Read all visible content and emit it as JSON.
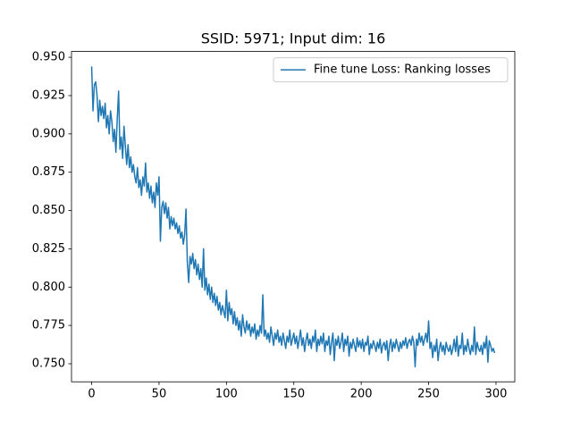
{
  "chart_data": {
    "type": "line",
    "title": "SSID: 5971; Input dim: 16",
    "x": [
      0,
      1,
      2,
      3,
      4,
      5,
      6,
      7,
      8,
      9,
      10,
      11,
      12,
      13,
      14,
      15,
      16,
      17,
      18,
      19,
      20,
      21,
      22,
      23,
      24,
      25,
      26,
      27,
      28,
      29,
      30,
      31,
      32,
      33,
      34,
      35,
      36,
      37,
      38,
      39,
      40,
      41,
      42,
      43,
      44,
      45,
      46,
      47,
      48,
      49,
      50,
      51,
      52,
      53,
      54,
      55,
      56,
      57,
      58,
      59,
      60,
      61,
      62,
      63,
      64,
      65,
      66,
      67,
      68,
      69,
      70,
      71,
      72,
      73,
      74,
      75,
      76,
      77,
      78,
      79,
      80,
      81,
      82,
      83,
      84,
      85,
      86,
      87,
      88,
      89,
      90,
      91,
      92,
      93,
      94,
      95,
      96,
      97,
      98,
      99,
      100,
      101,
      102,
      103,
      104,
      105,
      106,
      107,
      108,
      109,
      110,
      111,
      112,
      113,
      114,
      115,
      116,
      117,
      118,
      119,
      120,
      121,
      122,
      123,
      124,
      125,
      126,
      127,
      128,
      129,
      130,
      131,
      132,
      133,
      134,
      135,
      136,
      137,
      138,
      139,
      140,
      141,
      142,
      143,
      144,
      145,
      146,
      147,
      148,
      149,
      150,
      151,
      152,
      153,
      154,
      155,
      156,
      157,
      158,
      159,
      160,
      161,
      162,
      163,
      164,
      165,
      166,
      167,
      168,
      169,
      170,
      171,
      172,
      173,
      174,
      175,
      176,
      177,
      178,
      179,
      180,
      181,
      182,
      183,
      184,
      185,
      186,
      187,
      188,
      189,
      190,
      191,
      192,
      193,
      194,
      195,
      196,
      197,
      198,
      199,
      200,
      201,
      202,
      203,
      204,
      205,
      206,
      207,
      208,
      209,
      210,
      211,
      212,
      213,
      214,
      215,
      216,
      217,
      218,
      219,
      220,
      221,
      222,
      223,
      224,
      225,
      226,
      227,
      228,
      229,
      230,
      231,
      232,
      233,
      234,
      235,
      236,
      237,
      238,
      239,
      240,
      241,
      242,
      243,
      244,
      245,
      246,
      247,
      248,
      249,
      250,
      251,
      252,
      253,
      254,
      255,
      256,
      257,
      258,
      259,
      260,
      261,
      262,
      263,
      264,
      265,
      266,
      267,
      268,
      269,
      270,
      271,
      272,
      273,
      274,
      275,
      276,
      277,
      278,
      279,
      280,
      281,
      282,
      283,
      284,
      285,
      286,
      287,
      288,
      289,
      290,
      291,
      292,
      293,
      294,
      295,
      296,
      297,
      298,
      299
    ],
    "series": [
      {
        "name": "Fine tune Loss: Ranking losses",
        "color": "#1f77b4",
        "values": [
          0.944,
          0.915,
          0.932,
          0.934,
          0.925,
          0.908,
          0.922,
          0.912,
          0.918,
          0.91,
          0.92,
          0.904,
          0.912,
          0.9,
          0.915,
          0.908,
          0.895,
          0.903,
          0.888,
          0.91,
          0.928,
          0.89,
          0.898,
          0.884,
          0.905,
          0.892,
          0.88,
          0.893,
          0.878,
          0.885,
          0.875,
          0.88,
          0.872,
          0.868,
          0.878,
          0.865,
          0.87,
          0.86,
          0.872,
          0.866,
          0.881,
          0.862,
          0.868,
          0.858,
          0.866,
          0.855,
          0.862,
          0.852,
          0.868,
          0.86,
          0.872,
          0.83,
          0.852,
          0.856,
          0.848,
          0.855,
          0.845,
          0.852,
          0.838,
          0.846,
          0.84,
          0.845,
          0.838,
          0.842,
          0.835,
          0.84,
          0.832,
          0.836,
          0.828,
          0.834,
          0.851,
          0.816,
          0.803,
          0.82,
          0.815,
          0.822,
          0.812,
          0.818,
          0.808,
          0.815,
          0.805,
          0.812,
          0.8,
          0.825,
          0.798,
          0.806,
          0.795,
          0.802,
          0.792,
          0.8,
          0.79,
          0.796,
          0.788,
          0.794,
          0.785,
          0.79,
          0.782,
          0.788,
          0.784,
          0.78,
          0.798,
          0.778,
          0.79,
          0.782,
          0.786,
          0.776,
          0.784,
          0.775,
          0.78,
          0.772,
          0.778,
          0.768,
          0.782,
          0.774,
          0.77,
          0.778,
          0.772,
          0.776,
          0.768,
          0.774,
          0.77,
          0.776,
          0.766,
          0.772,
          0.768,
          0.775,
          0.77,
          0.795,
          0.768,
          0.772,
          0.766,
          0.77,
          0.764,
          0.774,
          0.768,
          0.762,
          0.77,
          0.766,
          0.772,
          0.764,
          0.768,
          0.762,
          0.77,
          0.765,
          0.76,
          0.768,
          0.764,
          0.772,
          0.762,
          0.766,
          0.77,
          0.763,
          0.768,
          0.76,
          0.766,
          0.772,
          0.762,
          0.767,
          0.758,
          0.765,
          0.77,
          0.762,
          0.766,
          0.76,
          0.768,
          0.764,
          0.772,
          0.758,
          0.766,
          0.762,
          0.768,
          0.763,
          0.77,
          0.758,
          0.765,
          0.762,
          0.768,
          0.756,
          0.764,
          0.77,
          0.752,
          0.766,
          0.762,
          0.768,
          0.76,
          0.764,
          0.77,
          0.758,
          0.766,
          0.762,
          0.768,
          0.755,
          0.764,
          0.76,
          0.766,
          0.762,
          0.758,
          0.767,
          0.761,
          0.765,
          0.76,
          0.766,
          0.758,
          0.764,
          0.762,
          0.768,
          0.756,
          0.763,
          0.76,
          0.765,
          0.762,
          0.758,
          0.764,
          0.76,
          0.766,
          0.757,
          0.762,
          0.764,
          0.759,
          0.765,
          0.752,
          0.762,
          0.766,
          0.758,
          0.764,
          0.76,
          0.766,
          0.762,
          0.758,
          0.764,
          0.76,
          0.765,
          0.762,
          0.767,
          0.76,
          0.764,
          0.766,
          0.762,
          0.768,
          0.764,
          0.748,
          0.766,
          0.762,
          0.77,
          0.764,
          0.768,
          0.762,
          0.766,
          0.77,
          0.764,
          0.778,
          0.76,
          0.764,
          0.754,
          0.762,
          0.758,
          0.766,
          0.752,
          0.76,
          0.764,
          0.758,
          0.762,
          0.756,
          0.764,
          0.76,
          0.758,
          0.762,
          0.756,
          0.76,
          0.766,
          0.758,
          0.768,
          0.755,
          0.762,
          0.76,
          0.77,
          0.756,
          0.762,
          0.758,
          0.766,
          0.76,
          0.756,
          0.762,
          0.758,
          0.774,
          0.756,
          0.764,
          0.76,
          0.758,
          0.762,
          0.756,
          0.764,
          0.76,
          0.768,
          0.751,
          0.765,
          0.762,
          0.758,
          0.76,
          0.757
        ]
      }
    ],
    "xlim": [
      -14.95,
      313.95
    ],
    "ylim": [
      0.7382,
      0.9538
    ],
    "xticks": [
      0,
      50,
      100,
      150,
      200,
      250,
      300
    ],
    "yticks": [
      {
        "value": 0.75,
        "label": "0.750"
      },
      {
        "value": 0.775,
        "label": "0.775"
      },
      {
        "value": 0.8,
        "label": "0.800"
      },
      {
        "value": 0.825,
        "label": "0.825"
      },
      {
        "value": 0.85,
        "label": "0.850"
      },
      {
        "value": 0.875,
        "label": "0.875"
      },
      {
        "value": 0.9,
        "label": "0.900"
      },
      {
        "value": 0.925,
        "label": "0.925"
      },
      {
        "value": 0.95,
        "label": "0.950"
      }
    ],
    "legend": "upper right"
  }
}
